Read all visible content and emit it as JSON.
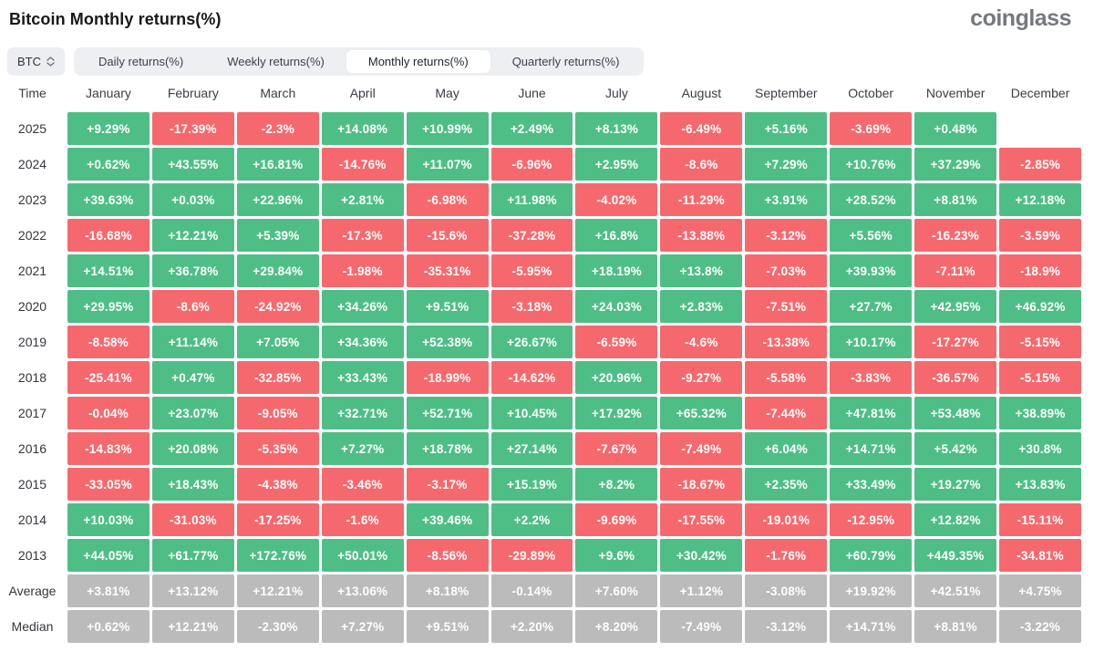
{
  "page": {
    "title": "Bitcoin Monthly returns(%)",
    "brand": "coinglass"
  },
  "toolbar": {
    "symbol": "BTC",
    "tabs": [
      {
        "label": "Daily returns(%)",
        "active": false
      },
      {
        "label": "Weekly returns(%)",
        "active": false
      },
      {
        "label": "Monthly returns(%)",
        "active": true
      },
      {
        "label": "Quarterly returns(%)",
        "active": false
      }
    ]
  },
  "colors": {
    "positive": "#4EBE86",
    "negative": "#F5696E",
    "summary": "#BBBBBB"
  },
  "chart_data": {
    "type": "heatmap",
    "title": "Bitcoin Monthly returns(%)",
    "legend_position": "none",
    "grid": false,
    "columns": [
      "Time",
      "January",
      "February",
      "March",
      "April",
      "May",
      "June",
      "July",
      "August",
      "September",
      "October",
      "November",
      "December"
    ],
    "rows": [
      {
        "label": "2025",
        "values": [
          "+9.29%",
          "-17.39%",
          "-2.3%",
          "+14.08%",
          "+10.99%",
          "+2.49%",
          "+8.13%",
          "-6.49%",
          "+5.16%",
          "-3.69%",
          "+0.48%",
          null
        ]
      },
      {
        "label": "2024",
        "values": [
          "+0.62%",
          "+43.55%",
          "+16.81%",
          "-14.76%",
          "+11.07%",
          "-6.96%",
          "+2.95%",
          "-8.6%",
          "+7.29%",
          "+10.76%",
          "+37.29%",
          "-2.85%"
        ]
      },
      {
        "label": "2023",
        "values": [
          "+39.63%",
          "+0.03%",
          "+22.96%",
          "+2.81%",
          "-6.98%",
          "+11.98%",
          "-4.02%",
          "-11.29%",
          "+3.91%",
          "+28.52%",
          "+8.81%",
          "+12.18%"
        ]
      },
      {
        "label": "2022",
        "values": [
          "-16.68%",
          "+12.21%",
          "+5.39%",
          "-17.3%",
          "-15.6%",
          "-37.28%",
          "+16.8%",
          "-13.88%",
          "-3.12%",
          "+5.56%",
          "-16.23%",
          "-3.59%"
        ]
      },
      {
        "label": "2021",
        "values": [
          "+14.51%",
          "+36.78%",
          "+29.84%",
          "-1.98%",
          "-35.31%",
          "-5.95%",
          "+18.19%",
          "+13.8%",
          "-7.03%",
          "+39.93%",
          "-7.11%",
          "-18.9%"
        ]
      },
      {
        "label": "2020",
        "values": [
          "+29.95%",
          "-8.6%",
          "-24.92%",
          "+34.26%",
          "+9.51%",
          "-3.18%",
          "+24.03%",
          "+2.83%",
          "-7.51%",
          "+27.7%",
          "+42.95%",
          "+46.92%"
        ]
      },
      {
        "label": "2019",
        "values": [
          "-8.58%",
          "+11.14%",
          "+7.05%",
          "+34.36%",
          "+52.38%",
          "+26.67%",
          "-6.59%",
          "-4.6%",
          "-13.38%",
          "+10.17%",
          "-17.27%",
          "-5.15%"
        ]
      },
      {
        "label": "2018",
        "values": [
          "-25.41%",
          "+0.47%",
          "-32.85%",
          "+33.43%",
          "-18.99%",
          "-14.62%",
          "+20.96%",
          "-9.27%",
          "-5.58%",
          "-3.83%",
          "-36.57%",
          "-5.15%"
        ]
      },
      {
        "label": "2017",
        "values": [
          "-0.04%",
          "+23.07%",
          "-9.05%",
          "+32.71%",
          "+52.71%",
          "+10.45%",
          "+17.92%",
          "+65.32%",
          "-7.44%",
          "+47.81%",
          "+53.48%",
          "+38.89%"
        ]
      },
      {
        "label": "2016",
        "values": [
          "-14.83%",
          "+20.08%",
          "-5.35%",
          "+7.27%",
          "+18.78%",
          "+27.14%",
          "-7.67%",
          "-7.49%",
          "+6.04%",
          "+14.71%",
          "+5.42%",
          "+30.8%"
        ]
      },
      {
        "label": "2015",
        "values": [
          "-33.05%",
          "+18.43%",
          "-4.38%",
          "-3.46%",
          "-3.17%",
          "+15.19%",
          "+8.2%",
          "-18.67%",
          "+2.35%",
          "+33.49%",
          "+19.27%",
          "+13.83%"
        ]
      },
      {
        "label": "2014",
        "values": [
          "+10.03%",
          "-31.03%",
          "-17.25%",
          "-1.6%",
          "+39.46%",
          "+2.2%",
          "-9.69%",
          "-17.55%",
          "-19.01%",
          "-12.95%",
          "+12.82%",
          "-15.11%"
        ]
      },
      {
        "label": "2013",
        "values": [
          "+44.05%",
          "+61.77%",
          "+172.76%",
          "+50.01%",
          "-8.56%",
          "-29.89%",
          "+9.6%",
          "+30.42%",
          "-1.76%",
          "+60.79%",
          "+449.35%",
          "-34.81%"
        ]
      }
    ],
    "summary_rows": [
      {
        "label": "Average",
        "values": [
          "+3.81%",
          "+13.12%",
          "+12.21%",
          "+13.06%",
          "+8.18%",
          "-0.14%",
          "+7.60%",
          "+1.12%",
          "-3.08%",
          "+19.92%",
          "+42.51%",
          "+4.75%"
        ]
      },
      {
        "label": "Median",
        "values": [
          "+0.62%",
          "+12.21%",
          "-2.30%",
          "+7.27%",
          "+9.51%",
          "+2.20%",
          "+8.20%",
          "-7.49%",
          "-3.12%",
          "+14.71%",
          "+8.81%",
          "-3.22%"
        ]
      }
    ]
  }
}
